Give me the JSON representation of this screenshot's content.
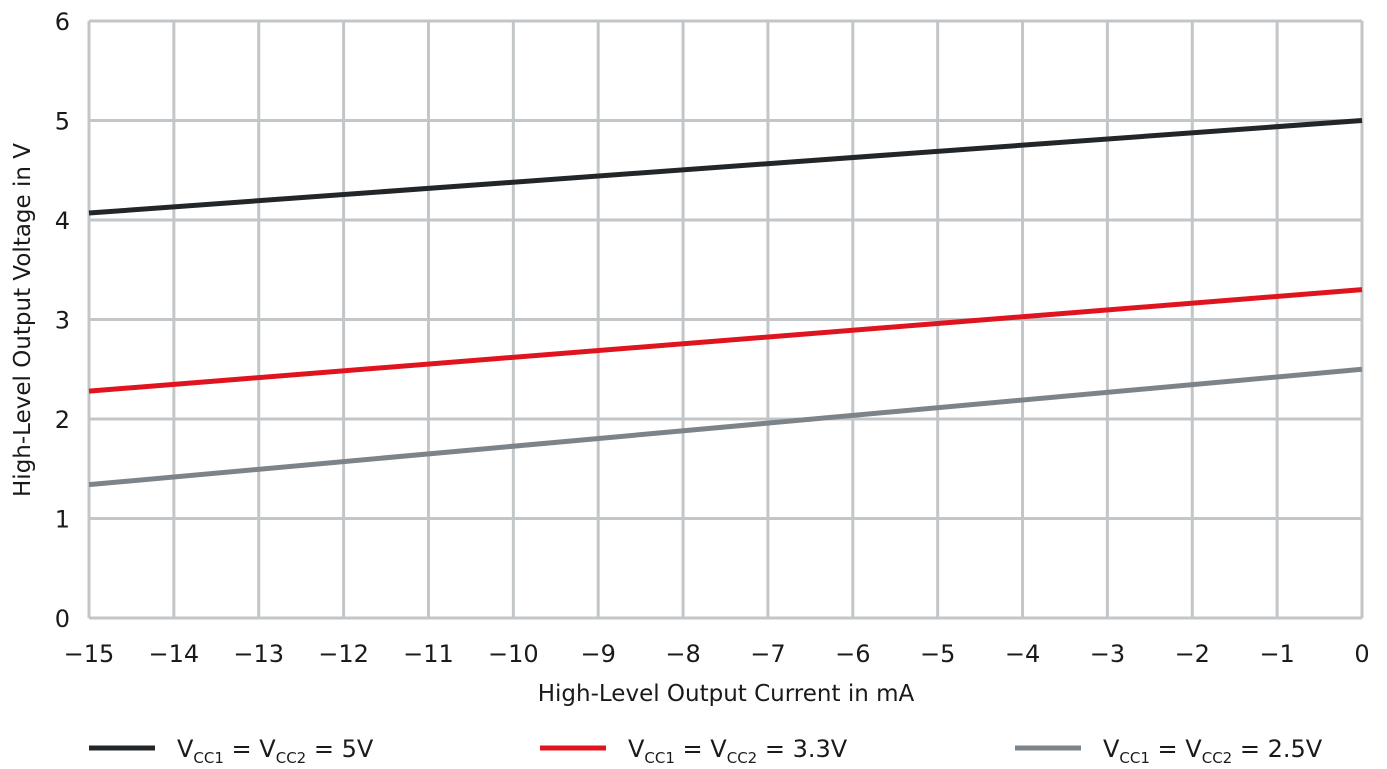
{
  "chart_data": {
    "type": "line",
    "title": "",
    "xlabel": "High-Level Output Current in mA",
    "ylabel": "High-Level Output Voltage in V",
    "xlim": [
      -15,
      0
    ],
    "ylim": [
      0,
      6
    ],
    "xticks": [
      -15,
      -14,
      -13,
      -12,
      -11,
      -10,
      -9,
      -8,
      -7,
      -6,
      -5,
      -4,
      -3,
      -2,
      -1,
      0
    ],
    "yticks": [
      0,
      1,
      2,
      3,
      4,
      5,
      6
    ],
    "xtick_labels": [
      "−15",
      "−14",
      "−13",
      "−12",
      "−11",
      "−10",
      "−9",
      "−8",
      "−7",
      "−6",
      "−5",
      "−4",
      "−3",
      "−2",
      "−1",
      "0"
    ],
    "ytick_labels": [
      "0",
      "1",
      "2",
      "3",
      "4",
      "5",
      "6"
    ],
    "grid": true,
    "legend_position": "bottom",
    "series": [
      {
        "legend": {
          "v1": "V",
          "sub1": "CC1",
          "eq": " = V",
          "sub2": "CC2",
          "value": " = 5V"
        },
        "color": "#222629",
        "x": [
          -15,
          0
        ],
        "y": [
          4.07,
          5.0
        ]
      },
      {
        "legend": {
          "v1": "V",
          "sub1": "CC1",
          "eq": " = V",
          "sub2": "CC2",
          "value": " = 3.3V"
        },
        "color": "#e0141e",
        "x": [
          -15,
          0
        ],
        "y": [
          2.28,
          3.3
        ]
      },
      {
        "legend": {
          "v1": "V",
          "sub1": "CC1",
          "eq": " = V",
          "sub2": "CC2",
          "value": " = 2.5V"
        },
        "color": "#7d8489",
        "x": [
          -15,
          0
        ],
        "y": [
          1.34,
          2.5
        ]
      }
    ]
  }
}
